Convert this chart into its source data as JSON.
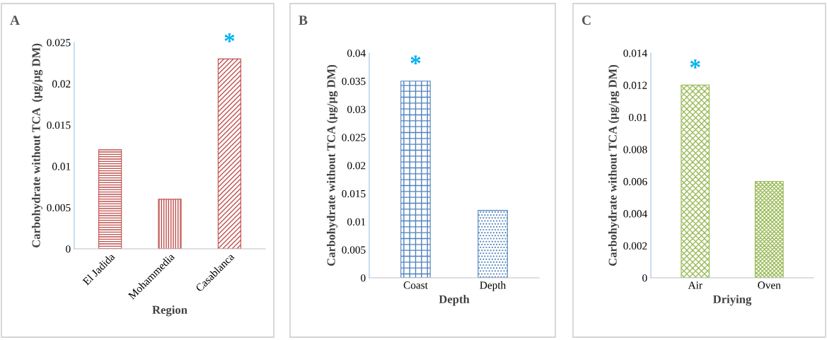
{
  "chart_data": [
    {
      "type": "bar",
      "title": "A",
      "xlabel": "Region",
      "ylabel": "Carbohydrate without TCA  (µg/µg DM)",
      "categories": [
        "El Jadida",
        "Mohammedia",
        "Casablanca"
      ],
      "values": [
        0.012,
        0.006,
        0.023
      ],
      "color": "#c0504d",
      "ylim": [
        0,
        0.025
      ],
      "yticks": [
        {
          "value": 0,
          "label": "0"
        },
        {
          "value": 0.005,
          "label": "0.005"
        },
        {
          "value": 0.01,
          "label": "0.01"
        },
        {
          "value": 0.015,
          "label": "0.015"
        },
        {
          "value": 0.02,
          "label": "0.02"
        },
        {
          "value": 0.025,
          "label": "0.025"
        }
      ],
      "grid": false,
      "annotations": [
        "*"
      ]
    },
    {
      "type": "bar",
      "title": "B",
      "xlabel": "Depth",
      "ylabel": "Carbohydrate without TCA (µg/µg DM)",
      "categories": [
        "Coast",
        "Depth"
      ],
      "values": [
        0.035,
        0.012
      ],
      "color": "#4f81bd",
      "ylim": [
        0,
        0.04
      ],
      "yticks": [
        {
          "value": 0,
          "label": "0"
        },
        {
          "value": 0.005,
          "label": "0.005"
        },
        {
          "value": 0.01,
          "label": "0.01"
        },
        {
          "value": 0.015,
          "label": "0.015"
        },
        {
          "value": 0.02,
          "label": "0.02"
        },
        {
          "value": 0.025,
          "label": "0.025"
        },
        {
          "value": 0.03,
          "label": "0.03"
        },
        {
          "value": 0.035,
          "label": "0.035"
        },
        {
          "value": 0.04,
          "label": "0.04"
        }
      ],
      "grid": false,
      "annotations": [
        "*"
      ]
    },
    {
      "type": "bar",
      "title": "C",
      "xlabel": "Driying",
      "ylabel": "Carbohydrate without TCA (µg/µg DM)",
      "categories": [
        "Air",
        "Oven"
      ],
      "values": [
        0.012,
        0.006
      ],
      "color": "#9bbb59",
      "ylim": [
        0,
        0.014
      ],
      "yticks": [
        {
          "value": 0,
          "label": "0"
        },
        {
          "value": 0.002,
          "label": "0.002"
        },
        {
          "value": 0.004,
          "label": "0.004"
        },
        {
          "value": 0.006,
          "label": "0.006"
        },
        {
          "value": 0.008,
          "label": "0.008"
        },
        {
          "value": 0.01,
          "label": "0.01"
        },
        {
          "value": 0.012,
          "label": "0.012"
        },
        {
          "value": 0.014,
          "label": "0.014"
        }
      ],
      "grid": false,
      "annotations": [
        "*"
      ]
    }
  ]
}
